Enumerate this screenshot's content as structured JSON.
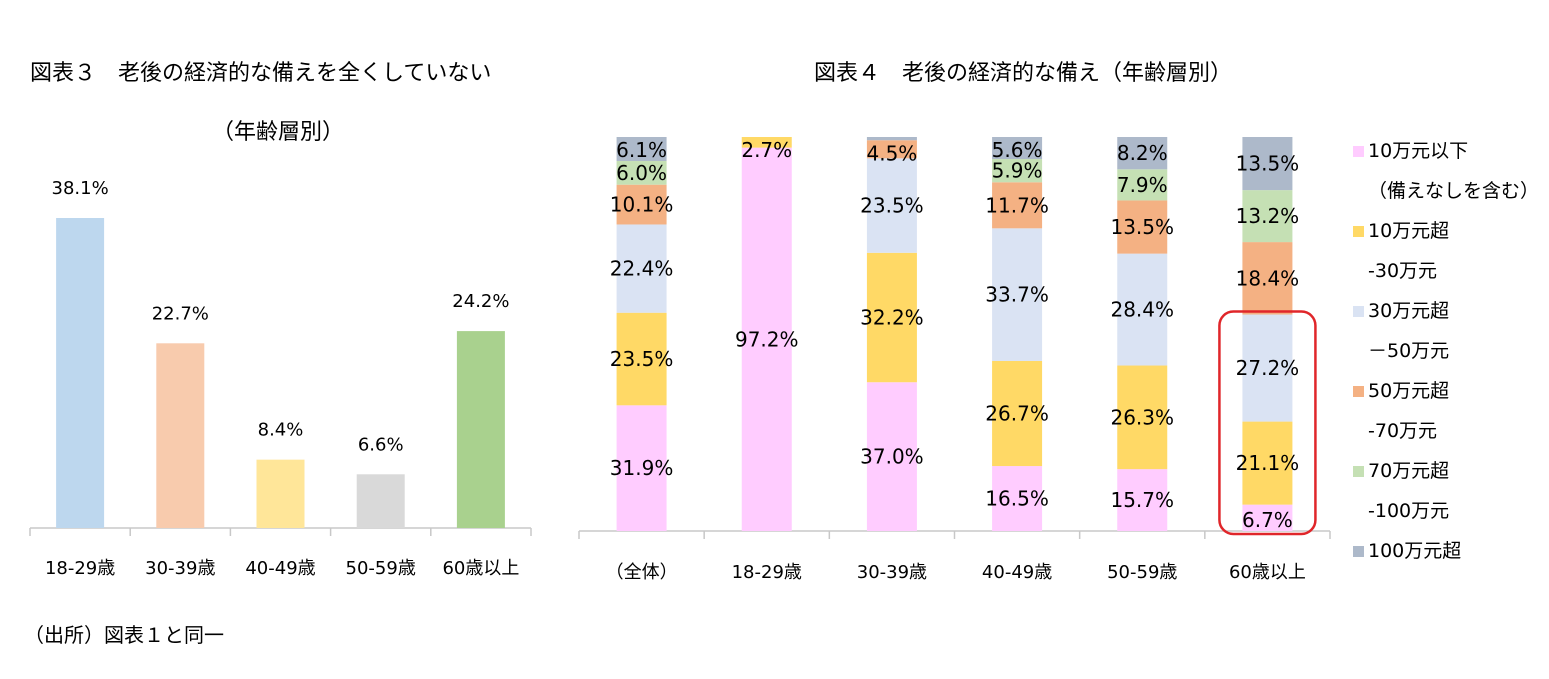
{
  "source_note": "（出所）図表１と同一",
  "colors": {
    "axis": "#c8c8c8",
    "highlight": "#e0262a"
  },
  "chart_data": [
    {
      "type": "bar",
      "title": "図表３　老後の経済的な備えを全くしていない",
      "subtitle": "（年齢層別）",
      "xlabel": "",
      "ylabel": "",
      "ylim": [
        0,
        40
      ],
      "grid": false,
      "categories": [
        "18-29歳",
        "30-39歳",
        "40-49歳",
        "50-59歳",
        "60歳以上"
      ],
      "values": [
        38.1,
        22.7,
        8.4,
        6.6,
        24.2
      ],
      "value_labels": [
        "38.1%",
        "22.7%",
        "8.4%",
        "6.6%",
        "24.2%"
      ],
      "bar_colors": [
        "#bdd7ee",
        "#f8cbad",
        "#ffe699",
        "#d9d9d9",
        "#a9d18e"
      ]
    },
    {
      "type": "bar",
      "stacked": true,
      "title": "図表４　老後の経済的な備え（年齢層別）",
      "xlabel": "",
      "ylabel": "",
      "ylim": [
        0,
        100
      ],
      "grid": false,
      "legend_position": "right",
      "categories": [
        "（全体）",
        "18-29歳",
        "30-39歳",
        "40-49歳",
        "50-59歳",
        "60歳以上"
      ],
      "series": [
        {
          "name": "10万元以下（備えなしを含む）",
          "legend_lines": [
            "10万元以下",
            "（備えなしを含む）"
          ],
          "color": "#ffccff",
          "values": [
            31.9,
            97.2,
            37.0,
            16.5,
            15.7,
            6.7
          ],
          "labels": [
            "31.9%",
            "97.2%",
            "37.0%",
            "16.5%",
            "15.7%",
            "6.7%"
          ]
        },
        {
          "name": "10万元超-30万元",
          "legend_lines": [
            "10万元超",
            "-30万元"
          ],
          "color": "#ffd966",
          "values": [
            23.5,
            2.7,
            32.2,
            26.7,
            26.3,
            21.1
          ],
          "labels": [
            "23.5%",
            "2.7%",
            "32.2%",
            "26.7%",
            "26.3%",
            "21.1%"
          ]
        },
        {
          "name": "30万元超－50万元",
          "legend_lines": [
            "30万元超",
            "－50万元"
          ],
          "color": "#dae3f3",
          "values": [
            22.4,
            0,
            23.5,
            33.7,
            28.4,
            27.2
          ],
          "labels": [
            "22.4%",
            "",
            "23.5%",
            "33.7%",
            "28.4%",
            "27.2%"
          ]
        },
        {
          "name": "50万元超-70万元",
          "legend_lines": [
            "50万元超",
            "-70万元"
          ],
          "color": "#f4b183",
          "values": [
            10.1,
            0,
            4.5,
            11.7,
            13.5,
            18.4
          ],
          "labels": [
            "10.1%",
            "",
            "4.5%",
            "11.7%",
            "13.5%",
            "18.4%"
          ]
        },
        {
          "name": "70万元超-100万元",
          "legend_lines": [
            "70万元超",
            "-100万元"
          ],
          "color": "#c5e0b4",
          "values": [
            6.0,
            0,
            0,
            5.9,
            7.9,
            13.2
          ],
          "labels": [
            "6.0%",
            "",
            "",
            "5.9%",
            "7.9%",
            "13.2%"
          ]
        },
        {
          "name": "100万元超",
          "legend_lines": [
            "100万元超"
          ],
          "color": "#adb9ca",
          "values": [
            6.1,
            0,
            0.8,
            5.6,
            8.2,
            13.5
          ],
          "labels": [
            "6.1%",
            "",
            "",
            "5.6%",
            "8.2%",
            "13.5%"
          ]
        }
      ],
      "highlight": {
        "category": "60歳以上",
        "series_range": [
          "10万元以下（備えなしを含む）",
          "30万元超－50万元"
        ],
        "color": "#e0262a"
      }
    }
  ]
}
